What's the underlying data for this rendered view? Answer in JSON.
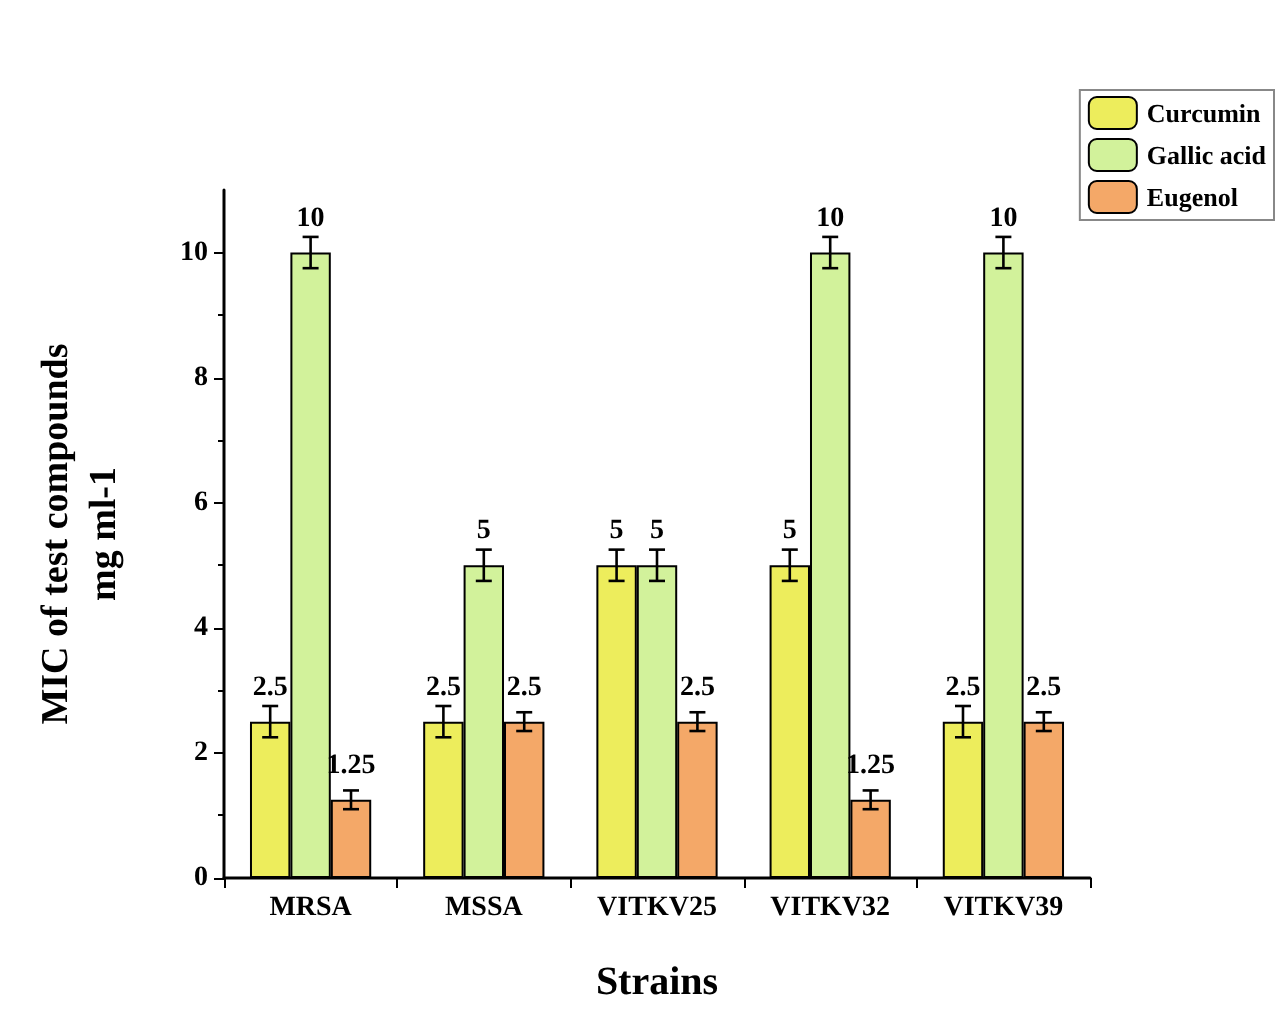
{
  "chart_data": {
    "type": "bar",
    "xlabel": "Strains",
    "ylabel": "MIC of test compounds\nmg ml-1",
    "categories": [
      "MRSA",
      "MSSA",
      "VITKV25",
      "VITKV32",
      "VITKV39"
    ],
    "series": [
      {
        "name": "Curcumin",
        "color": "#eded5c",
        "values": [
          2.5,
          2.5,
          5,
          5,
          2.5
        ],
        "errors": [
          0.25,
          0.25,
          0.25,
          0.25,
          0.25
        ]
      },
      {
        "name": "Gallic acid",
        "color": "#d2f29b",
        "values": [
          10,
          5,
          5,
          10,
          10
        ],
        "errors": [
          0.25,
          0.25,
          0.25,
          0.25,
          0.25
        ]
      },
      {
        "name": "Eugenol",
        "color": "#f4a868",
        "values": [
          1.25,
          2.5,
          2.5,
          1.25,
          2.5
        ],
        "errors": [
          0.15,
          0.15,
          0.15,
          0.15,
          0.15
        ]
      }
    ],
    "ylim": [
      0,
      11
    ],
    "yticks": [
      0,
      2,
      4,
      6,
      8,
      10
    ],
    "grid": false,
    "legend": "top right",
    "data_labels": true
  }
}
